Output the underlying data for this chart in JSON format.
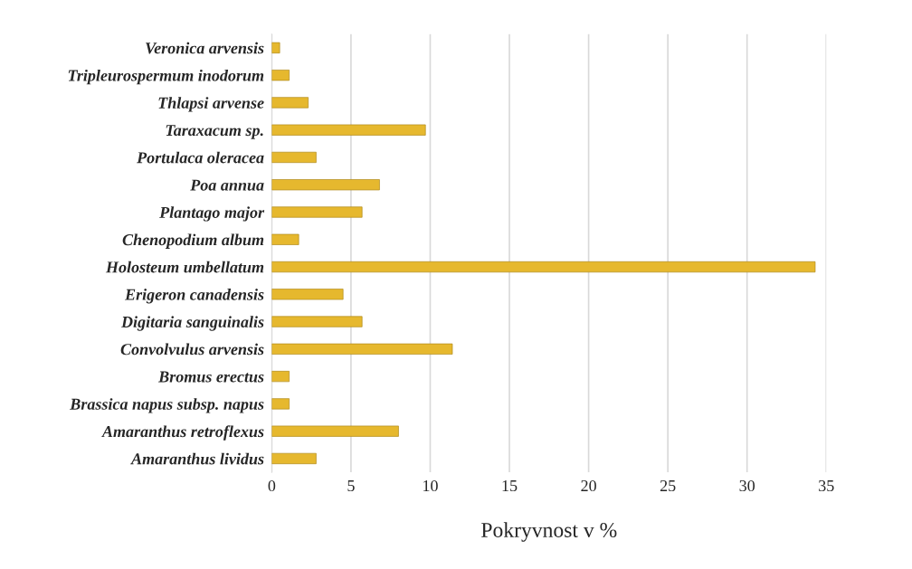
{
  "chart_data": {
    "type": "bar",
    "orientation": "horizontal",
    "xlabel": "Pokryvnost v %",
    "categories": [
      "Veronica arvensis",
      "Tripleurospermum inodorum",
      "Thlapsi arvense",
      "Taraxacum sp.",
      "Portulaca oleracea",
      "Poa annua",
      "Plantago major",
      "Chenopodium album",
      "Holosteum umbellatum",
      "Erigeron canadensis",
      "Digitaria sanguinalis",
      "Convolvulus arvensis",
      "Bromus erectus",
      "Brassica napus subsp. napus",
      "Amaranthus retroflexus",
      "Amaranthus lividus"
    ],
    "values": [
      0.5,
      1.1,
      2.3,
      9.7,
      2.8,
      6.8,
      5.7,
      1.7,
      34.3,
      4.5,
      5.7,
      11.4,
      1.1,
      1.1,
      8.0,
      2.8
    ],
    "color": "#e6b82e",
    "xlim": [
      0,
      35
    ],
    "xticks": [
      0,
      5,
      10,
      15,
      20,
      25,
      30,
      35
    ],
    "grid": "x"
  }
}
